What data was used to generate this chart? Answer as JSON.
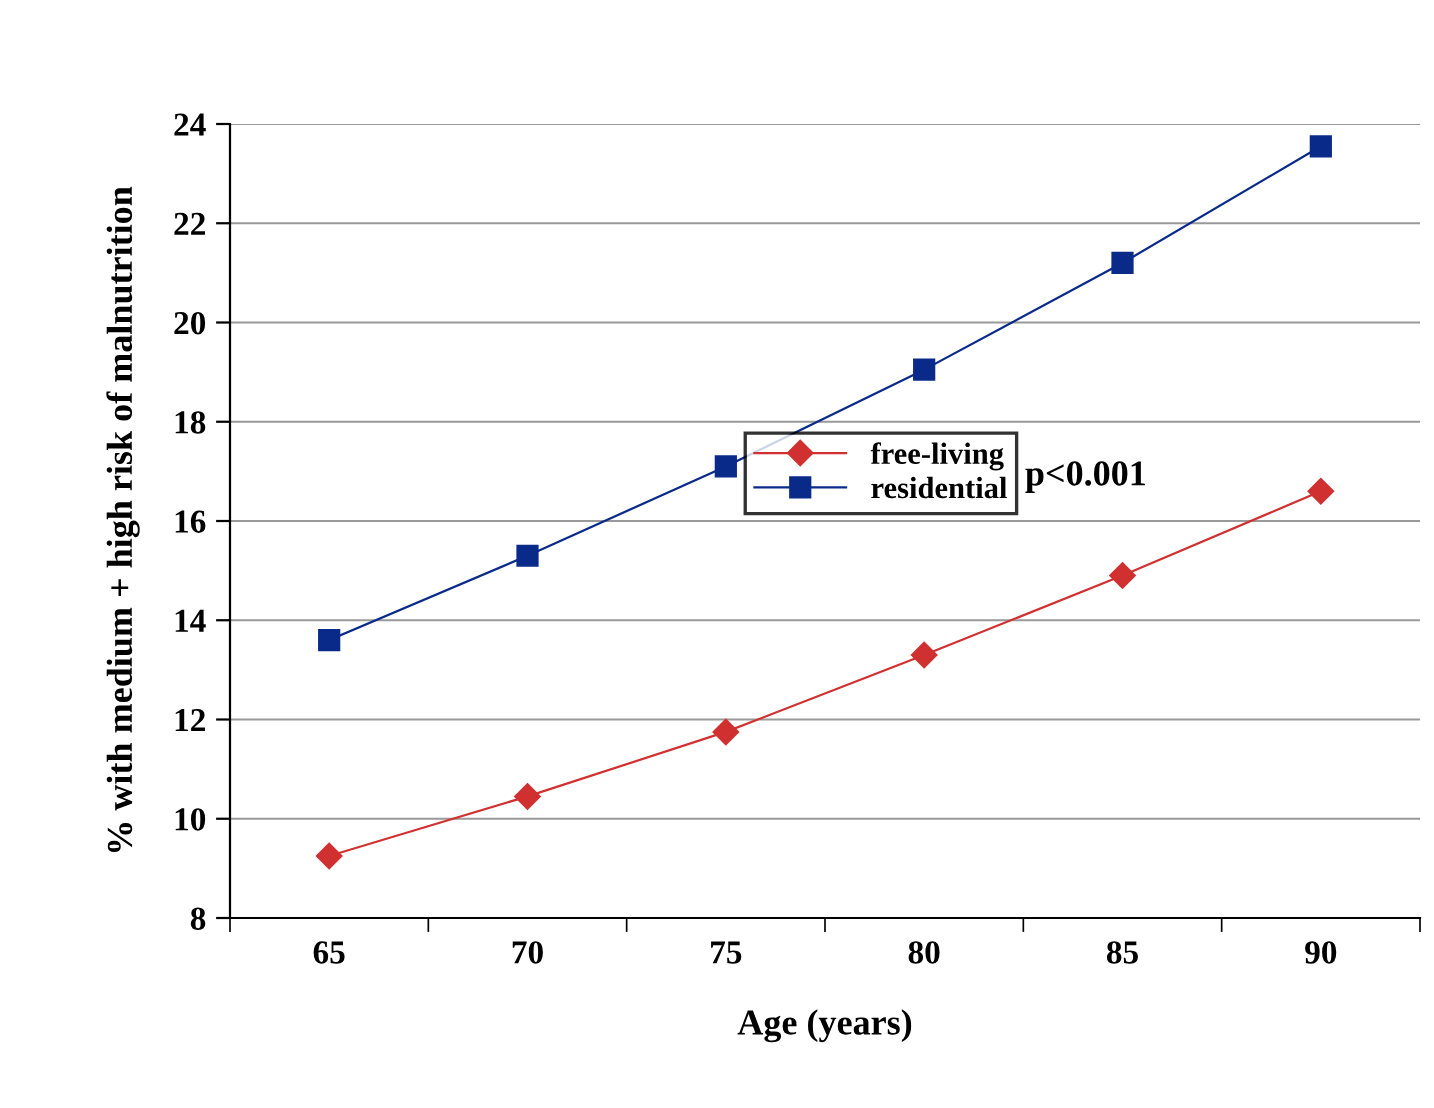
{
  "chart_data": {
    "type": "line",
    "xlabel": "Age (years)",
    "ylabel": "% with medium + high risk of malnutrition",
    "categories": [
      "65",
      "70",
      "75",
      "80",
      "85",
      "90"
    ],
    "series": [
      {
        "name": "free-living",
        "color": "#d03030",
        "values": [
          9.25,
          10.45,
          11.75,
          13.3,
          14.9,
          16.6
        ],
        "marker": "diamond"
      },
      {
        "name": "residential",
        "color": "#0a2a8a",
        "values": [
          13.6,
          15.3,
          17.1,
          19.05,
          21.2,
          23.55
        ],
        "marker": "square"
      }
    ],
    "ylim": [
      8,
      24
    ],
    "yticks": [
      8,
      10,
      12,
      14,
      16,
      18,
      20,
      22,
      24
    ],
    "grid": "y",
    "legend": "center",
    "annotations": [
      "p<0.001"
    ]
  }
}
